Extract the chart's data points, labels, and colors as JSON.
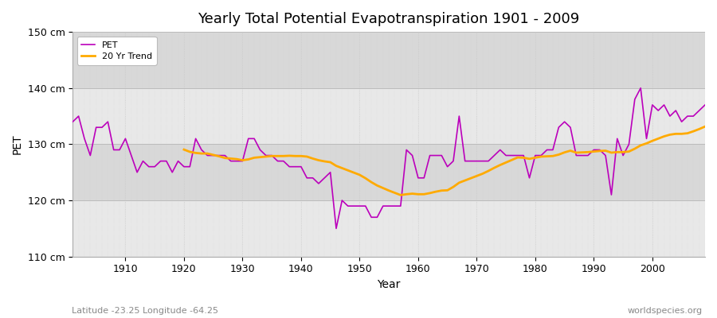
{
  "title": "Yearly Total Potential Evapotranspiration 1901 - 2009",
  "xlabel": "Year",
  "ylabel": "PET",
  "subtitle": "Latitude -23.25 Longitude -64.25",
  "watermark": "worldspecies.org",
  "ylim": [
    110,
    150
  ],
  "xlim": [
    1901,
    2009
  ],
  "yticks": [
    110,
    120,
    130,
    140,
    150
  ],
  "ytick_labels": [
    "110 cm",
    "120 cm",
    "130 cm",
    "140 cm",
    "150 cm"
  ],
  "xticks": [
    1910,
    1920,
    1930,
    1940,
    1950,
    1960,
    1970,
    1980,
    1990,
    2000
  ],
  "pet_color": "#bb00bb",
  "trend_color": "#ffaa00",
  "bg_color": "#ffffff",
  "plot_bg_color": "#e8e8e8",
  "grid_color_major": "#d0d0d0",
  "grid_color_minor": "#e0e0e0",
  "pet_values": [
    134,
    135,
    131,
    128,
    133,
    133,
    134,
    129,
    129,
    131,
    128,
    125,
    127,
    126,
    126,
    127,
    127,
    125,
    127,
    126,
    126,
    131,
    129,
    128,
    128,
    128,
    128,
    127,
    127,
    127,
    131,
    131,
    129,
    128,
    128,
    127,
    127,
    126,
    126,
    126,
    124,
    124,
    123,
    124,
    125,
    115,
    120,
    119,
    119,
    119,
    119,
    117,
    117,
    119,
    119,
    119,
    119,
    129,
    128,
    124,
    124,
    128,
    128,
    128,
    126,
    127,
    135,
    127,
    127,
    127,
    127,
    127,
    128,
    129,
    128,
    128,
    128,
    128,
    124,
    128,
    128,
    129,
    129,
    133,
    134,
    133,
    128,
    128,
    128,
    129,
    129,
    128,
    121,
    131,
    128,
    130,
    138,
    140,
    131,
    137,
    136,
    137,
    135,
    136,
    134,
    135,
    135,
    136,
    137
  ],
  "years": [
    1901,
    1902,
    1903,
    1904,
    1905,
    1906,
    1907,
    1908,
    1909,
    1910,
    1911,
    1912,
    1913,
    1914,
    1915,
    1916,
    1917,
    1918,
    1919,
    1920,
    1921,
    1922,
    1923,
    1924,
    1925,
    1926,
    1927,
    1928,
    1929,
    1930,
    1931,
    1932,
    1933,
    1934,
    1935,
    1936,
    1937,
    1938,
    1939,
    1940,
    1941,
    1942,
    1943,
    1944,
    1945,
    1946,
    1947,
    1948,
    1949,
    1950,
    1951,
    1952,
    1953,
    1954,
    1955,
    1956,
    1957,
    1958,
    1959,
    1960,
    1961,
    1962,
    1963,
    1964,
    1965,
    1966,
    1967,
    1968,
    1969,
    1970,
    1971,
    1972,
    1973,
    1974,
    1975,
    1976,
    1977,
    1978,
    1979,
    1980,
    1981,
    1982,
    1983,
    1984,
    1985,
    1986,
    1987,
    1988,
    1989,
    1990,
    1991,
    1992,
    1993,
    1994,
    1995,
    1996,
    1997,
    1998,
    1999,
    2000,
    2001,
    2002,
    2003,
    2004,
    2005,
    2006,
    2007,
    2008,
    2009
  ]
}
